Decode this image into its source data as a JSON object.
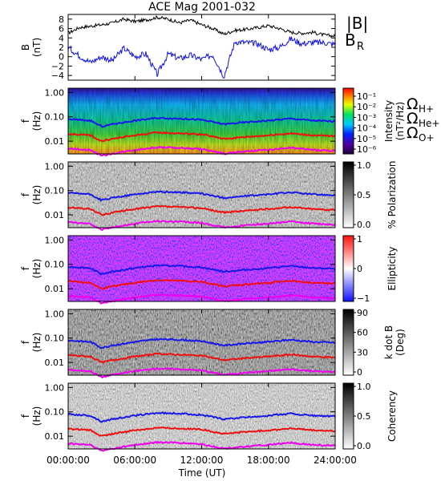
{
  "chart_data": {
    "type": "line",
    "title": "ACE Mag 2001-032",
    "xlabel": "Time (UT)",
    "x_ticks": [
      "00:00:00",
      "06:00:00",
      "12:00:00",
      "18:00:00",
      "24:00:00"
    ],
    "xlim_hours": [
      0,
      24
    ],
    "panels": [
      {
        "kind": "timeseries",
        "ylabel": "B\n(nT)",
        "ylim": [
          -5,
          9
        ],
        "y_ticks": [
          "8",
          "6",
          "4",
          "2",
          "0",
          "−2",
          "−4"
        ],
        "series": [
          {
            "name": "|B|",
            "color": "#000000",
            "x_hours": [
              0,
              1,
              2,
              3,
              4,
              5,
              6,
              7,
              8,
              9,
              10,
              11,
              12,
              13,
              14,
              15,
              16,
              17,
              18,
              19,
              20,
              21,
              22,
              23,
              24
            ],
            "values": [
              5.0,
              6.2,
              6.5,
              6.8,
              7.2,
              8.0,
              7.5,
              7.8,
              8.4,
              8.0,
              7.2,
              7.8,
              6.8,
              6.0,
              4.8,
              5.6,
              5.8,
              6.2,
              6.6,
              6.0,
              5.2,
              5.0,
              5.2,
              4.6,
              4.4
            ]
          },
          {
            "name": "B",
            "subscript": "R",
            "color": "#1010ee",
            "x_hours": [
              0,
              1,
              2,
              3,
              4,
              5,
              6,
              7,
              8,
              9,
              10,
              11,
              12,
              13,
              14,
              15,
              16,
              17,
              18,
              19,
              20,
              21,
              22,
              23,
              24
            ],
            "values": [
              2.0,
              0.2,
              -1.2,
              0.0,
              -0.8,
              1.8,
              0.0,
              0.6,
              -3.8,
              0.6,
              -0.4,
              0.3,
              -0.6,
              0.4,
              -4.2,
              3.2,
              3.0,
              2.8,
              1.5,
              2.0,
              3.8,
              2.8,
              3.0,
              3.0,
              2.6
            ]
          }
        ]
      },
      {
        "kind": "spectrogram",
        "ylabel": "f\n(Hz)",
        "y_ticks": [
          "1.00",
          "0.10",
          "0.01"
        ],
        "colorbar": {
          "label": "Intensity\n(nT²/Hz)",
          "ticks": [
            "10⁻¹",
            "10⁻²",
            "10⁻³",
            "10⁻⁴",
            "10⁻⁵",
            "10⁻⁶"
          ],
          "scale": "rainbow"
        }
      },
      {
        "kind": "spectrogram",
        "ylabel": "f\n(Hz)",
        "y_ticks": [
          "1.00",
          "0.10",
          "0.01"
        ],
        "colorbar": {
          "label": "% Polarization",
          "ticks": [
            "1.0",
            "0.5",
            "0.0"
          ],
          "scale": "gray"
        }
      },
      {
        "kind": "spectrogram",
        "ylabel": "f\n(Hz)",
        "y_ticks": [
          "1.00",
          "0.10",
          "0.01"
        ],
        "colorbar": {
          "label": "Ellipticity",
          "ticks": [
            "1",
            "0",
            "−1"
          ],
          "scale": "bwr"
        }
      },
      {
        "kind": "spectrogram",
        "ylabel": "f\n(Hz)",
        "y_ticks": [
          "1.00",
          "0.10",
          "0.01"
        ],
        "colorbar": {
          "label": "k dot B\n(Deg)",
          "ticks": [
            "90",
            "60",
            "30",
            "0"
          ],
          "scale": "gray"
        }
      },
      {
        "kind": "spectrogram",
        "ylabel": "f\n(Hz)",
        "y_ticks": [
          "1.00",
          "0.10",
          "0.01"
        ],
        "colorbar": {
          "label": "Coherency",
          "ticks": [
            "1.0",
            "0.5",
            "0.0"
          ],
          "scale": "gray"
        }
      }
    ],
    "gyrofrequency_lines": [
      {
        "name": "Ω",
        "subscript": "H+",
        "color": "#1818e8",
        "x_hours": [
          0,
          2,
          3,
          4,
          6,
          8,
          10,
          12,
          14,
          16,
          18,
          20,
          22,
          24
        ],
        "values_hz": [
          0.08,
          0.07,
          0.04,
          0.05,
          0.07,
          0.09,
          0.085,
          0.075,
          0.05,
          0.06,
          0.07,
          0.085,
          0.07,
          0.065
        ]
      },
      {
        "name": "Ω",
        "subscript": "He+",
        "color": "#ee1010",
        "x_hours": [
          0,
          2,
          3,
          4,
          6,
          8,
          10,
          12,
          14,
          16,
          18,
          20,
          22,
          24
        ],
        "values_hz": [
          0.02,
          0.0175,
          0.01,
          0.0125,
          0.0175,
          0.0225,
          0.021,
          0.019,
          0.0125,
          0.015,
          0.0175,
          0.021,
          0.0175,
          0.016
        ]
      },
      {
        "name": "Ω",
        "subscript": "O+",
        "color": "#ee00ee",
        "x_hours": [
          0,
          2,
          3,
          4,
          6,
          8,
          10,
          12,
          14,
          16,
          18,
          20,
          22,
          24
        ],
        "values_hz": [
          0.005,
          0.0044,
          0.0025,
          0.0031,
          0.0044,
          0.0056,
          0.0053,
          0.0047,
          0.0031,
          0.0038,
          0.0044,
          0.0053,
          0.0044,
          0.004
        ]
      }
    ],
    "grid": false
  }
}
